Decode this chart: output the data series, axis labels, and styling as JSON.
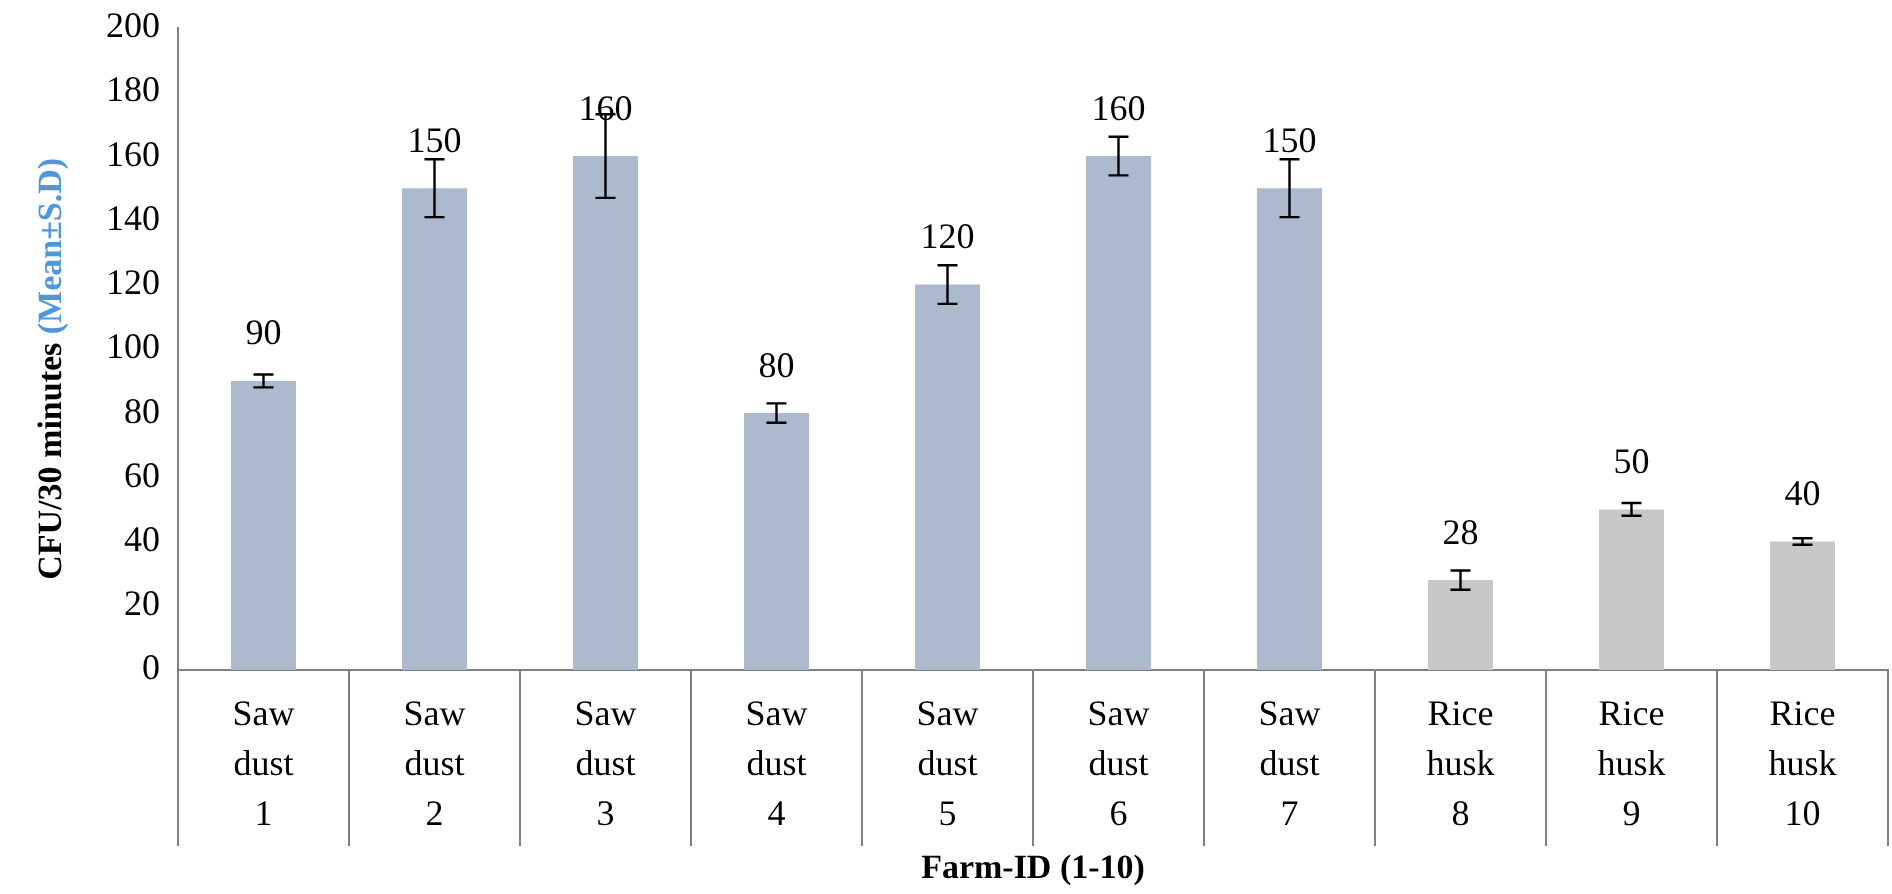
{
  "chart_data": {
    "type": "bar",
    "xlabel": "Farm-ID (1-10)",
    "ylabel": "CFU/30 minutes (Mean±S.D)",
    "categories": [
      "Saw dust\n1",
      "Saw dust\n2",
      "Saw dust\n3",
      "Saw dust\n4",
      "Saw dust\n5",
      "Saw dust\n6",
      "Saw dust\n7",
      "Rice husk\n8",
      "Rice husk\n9",
      "Rice husk\n10"
    ],
    "values": [
      90,
      150,
      160,
      80,
      120,
      160,
      150,
      28,
      50,
      40
    ],
    "colors": [
      "#adb9cc",
      "#adb9cc",
      "#adb9cc",
      "#adb9cc",
      "#adb9cc",
      "#adb9cc",
      "#adb9cc",
      "#c8c8c8",
      "#c8c8c8",
      "#c8c8c8"
    ],
    "errors": [
      2,
      9,
      13,
      3,
      6,
      6,
      9,
      3,
      2,
      1
    ],
    "ylim": [
      0,
      200
    ],
    "yticks": [
      0,
      20,
      40,
      60,
      80,
      100,
      120,
      140,
      160,
      180,
      200
    ],
    "data_labels": true,
    "grid": false,
    "legend": false
  }
}
